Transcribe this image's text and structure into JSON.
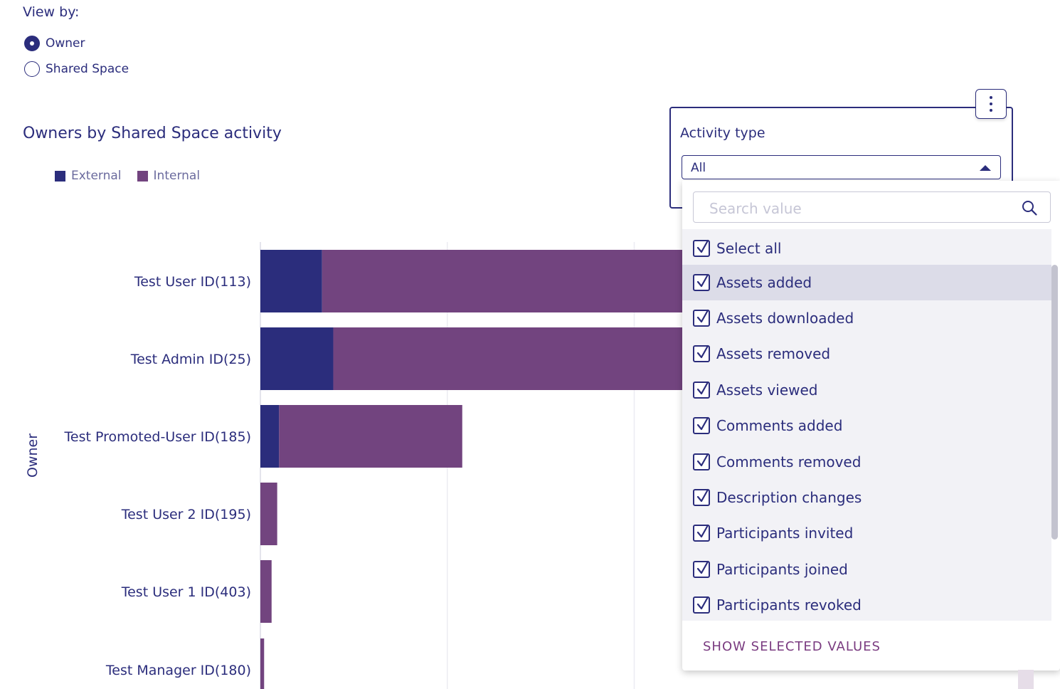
{
  "view_by": {
    "title": "View by:",
    "options": [
      {
        "label": "Owner",
        "selected": true
      },
      {
        "label": "Shared Space",
        "selected": false
      }
    ]
  },
  "chart_data": {
    "type": "bar",
    "orientation": "horizontal",
    "stacked": true,
    "title": "Owners by Shared Space activity",
    "ylabel": "Owner",
    "xlabel": "",
    "categories": [
      "Test User ID(113)",
      "Test Admin ID(25)",
      "Test Promoted-User ID(185)",
      "Test User 2 ID(195)",
      "Test User 1 ID(403)",
      "Test Manager ID(180)"
    ],
    "series": [
      {
        "name": "External",
        "color": "#2b2d7c",
        "values": [
          33,
          39,
          10,
          0,
          0,
          0
        ]
      },
      {
        "name": "Internal",
        "color": "#72447f",
        "values": [
          217,
          211,
          98,
          9,
          6,
          2
        ]
      }
    ],
    "xlim": [
      0,
      400
    ],
    "gridlines_at": [
      0,
      100,
      200,
      300,
      400
    ],
    "grid": true,
    "legend": "top-left"
  },
  "filter": {
    "label": "Activity type",
    "selected_value": "All",
    "menu_icon": "more-vertical-icon",
    "search_placeholder": "Search value",
    "search_icon": "search-icon",
    "options": [
      {
        "label": "Select all",
        "checked": true
      },
      {
        "label": "Assets added",
        "checked": true,
        "highlighted": true
      },
      {
        "label": "Assets downloaded",
        "checked": true
      },
      {
        "label": "Assets removed",
        "checked": true
      },
      {
        "label": "Assets viewed",
        "checked": true
      },
      {
        "label": "Comments added",
        "checked": true
      },
      {
        "label": "Comments removed",
        "checked": true
      },
      {
        "label": "Description changes",
        "checked": true
      },
      {
        "label": "Participants invited",
        "checked": true
      },
      {
        "label": "Participants joined",
        "checked": true
      },
      {
        "label": "Participants revoked",
        "checked": true
      }
    ],
    "footer_button": "SHOW SELECTED VALUES"
  },
  "colors": {
    "primary": "#2b2d7c",
    "internal": "#72447f",
    "accent_text": "#7a3b80"
  }
}
